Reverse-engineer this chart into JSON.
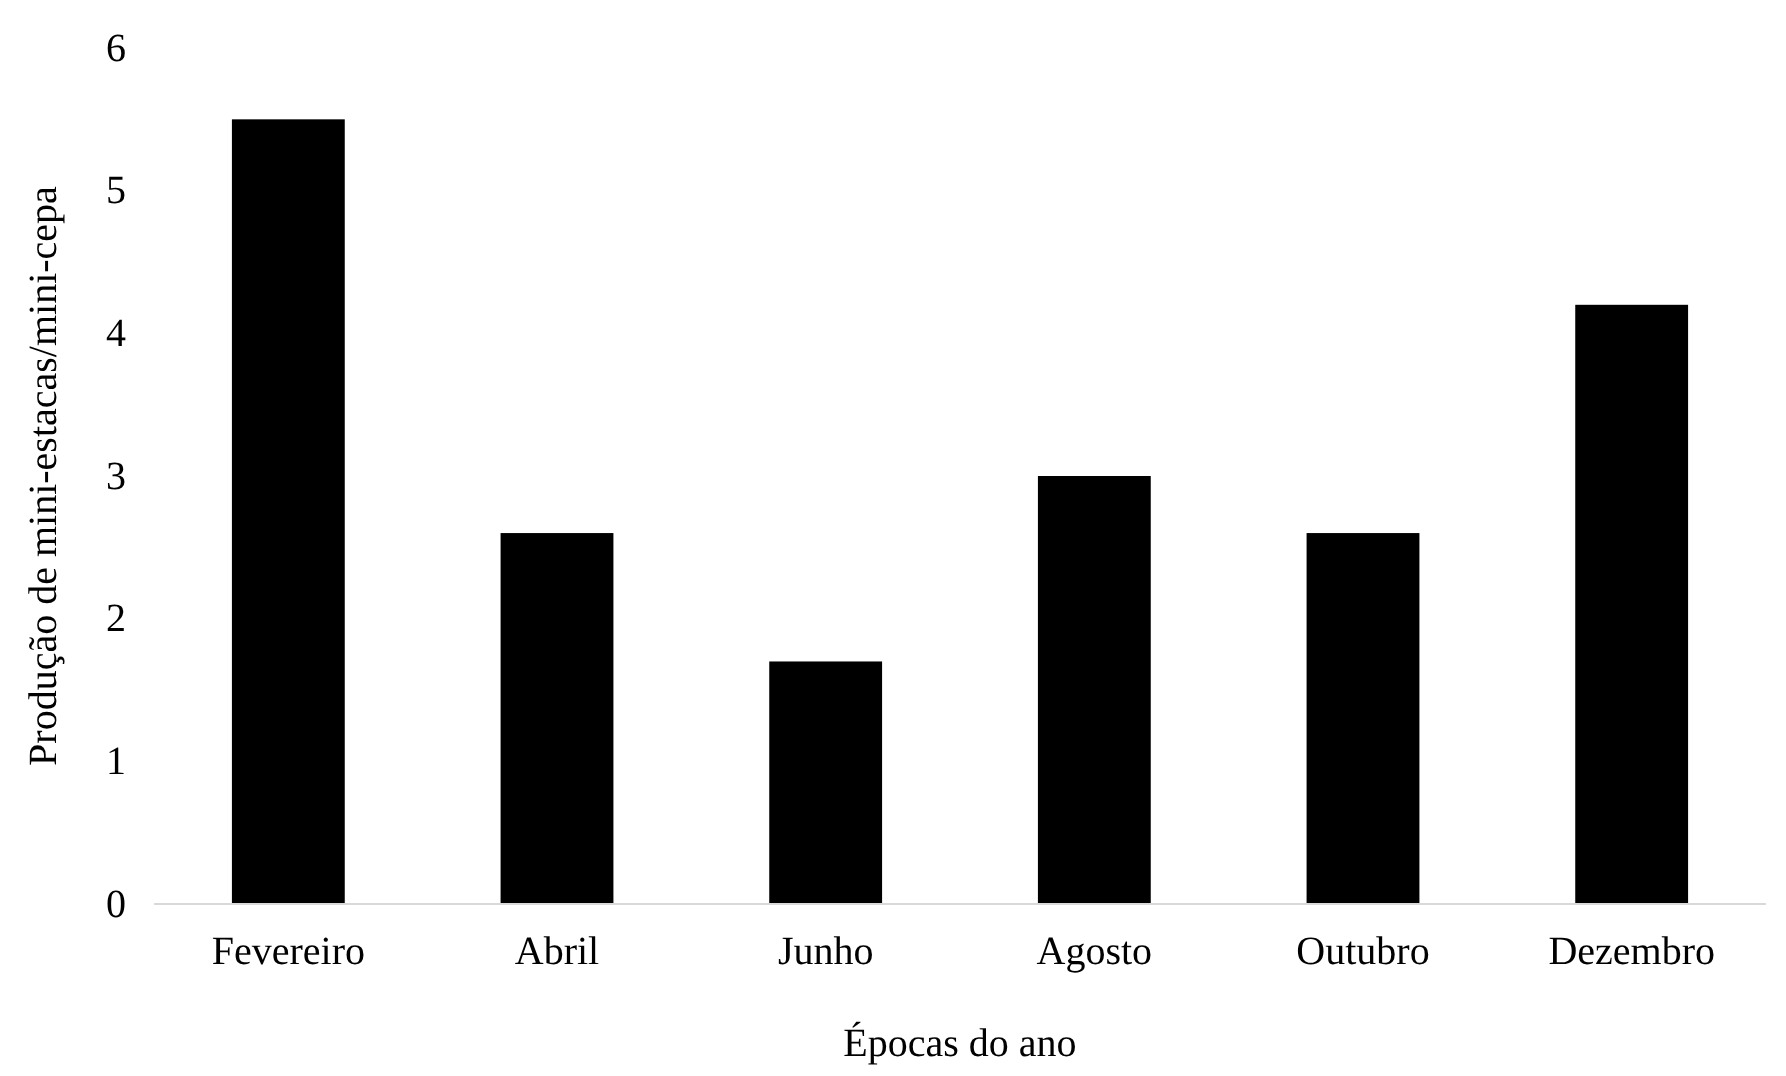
{
  "chart_data": {
    "type": "bar",
    "xlabel": "Épocas do ano",
    "ylabel": "Produção de mini-estacas/mini-cepa",
    "categories": [
      "Fevereiro",
      "Abril",
      "Junho",
      "Agosto",
      "Outubro",
      "Dezembro"
    ],
    "values": [
      5.5,
      2.6,
      1.7,
      3.0,
      2.6,
      4.2
    ],
    "color": "#000000",
    "ylim": [
      0,
      6
    ],
    "yticks": [
      0,
      1,
      2,
      3,
      4,
      5,
      6
    ],
    "grid": false
  }
}
